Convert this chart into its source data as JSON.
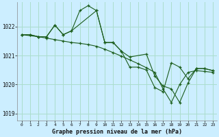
{
  "title": "Graphe pression niveau de la mer (hPa)",
  "background_color": "#cceeff",
  "grid_color": "#aaddcc",
  "line_color": "#1a5c1a",
  "xlim": [
    -0.5,
    23.5
  ],
  "ylim": [
    1018.75,
    1022.85
  ],
  "yticks": [
    1019,
    1020,
    1021,
    1022
  ],
  "xticks": [
    0,
    1,
    2,
    3,
    4,
    5,
    6,
    7,
    8,
    9,
    10,
    11,
    12,
    13,
    14,
    15,
    16,
    17,
    18,
    19,
    20,
    21,
    22,
    23
  ],
  "line1_x": [
    0,
    1,
    2,
    3,
    4,
    5,
    6,
    7,
    8,
    9,
    10,
    11,
    12,
    13,
    14,
    15,
    16,
    17,
    18,
    19,
    20,
    21,
    22,
    23
  ],
  "line1_y": [
    1021.72,
    1021.72,
    1021.65,
    1021.65,
    1022.05,
    1021.72,
    1021.85,
    1022.55,
    1022.72,
    1022.55,
    1021.45,
    1021.45,
    1021.15,
    1020.6,
    1020.6,
    1020.5,
    1019.9,
    1019.75,
    1020.75,
    1020.6,
    1020.2,
    1020.55,
    1020.55,
    1020.48
  ],
  "line2_x": [
    0,
    1,
    2,
    3,
    4,
    5,
    6,
    7,
    8,
    9,
    10,
    11,
    12,
    13,
    14,
    15,
    16,
    17,
    18,
    19,
    20,
    21,
    22,
    23
  ],
  "line2_y": [
    1021.72,
    1021.72,
    1021.65,
    1021.6,
    1021.55,
    1021.5,
    1021.45,
    1021.42,
    1021.38,
    1021.32,
    1021.22,
    1021.1,
    1020.98,
    1020.85,
    1020.72,
    1020.58,
    1020.42,
    1019.85,
    1019.38,
    1020.0,
    1020.42,
    1020.48,
    1020.45,
    1020.42
  ],
  "line3_x": [
    0,
    2,
    3,
    4,
    5,
    6,
    9,
    10,
    11,
    12,
    13,
    15,
    16,
    17,
    18,
    19,
    20,
    21,
    22,
    23
  ],
  "line3_y": [
    1021.72,
    1021.65,
    1021.65,
    1022.05,
    1021.72,
    1021.85,
    1022.55,
    1021.45,
    1021.45,
    1021.15,
    1020.95,
    1021.05,
    1020.3,
    1019.95,
    1019.85,
    1019.38,
    1020.05,
    1020.55,
    1020.55,
    1020.48
  ]
}
